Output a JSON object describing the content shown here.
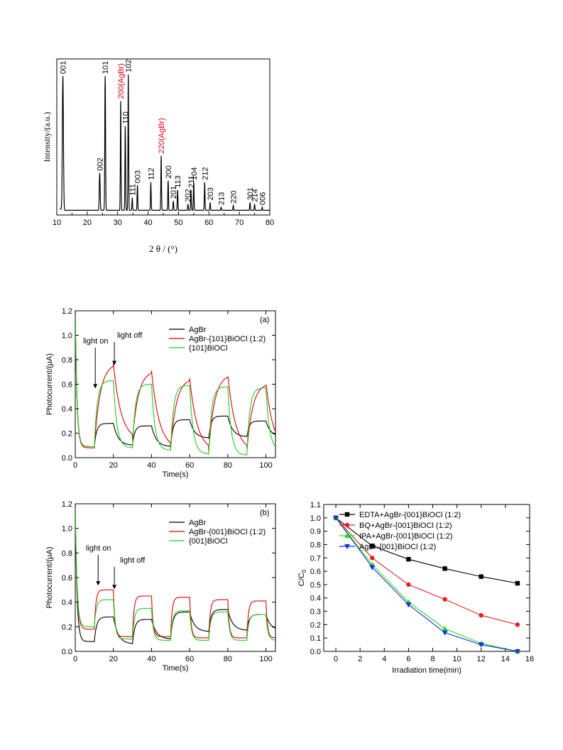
{
  "chart_data": [
    {
      "id": "xrd",
      "type": "line",
      "title": "",
      "xlabel": "2 θ / (°)",
      "ylabel": "Intensity/(a.u.)",
      "xlim": [
        10,
        80
      ],
      "xticks": [
        10,
        20,
        30,
        40,
        50,
        60,
        70,
        80
      ],
      "baseline": 0.03,
      "peaks": [
        {
          "x": 12.0,
          "h": 0.86,
          "w": 0.5,
          "label": "001",
          "color": "#000000"
        },
        {
          "x": 24.1,
          "h": 0.24,
          "w": 0.4,
          "label": "002",
          "color": "#000000"
        },
        {
          "x": 25.9,
          "h": 0.86,
          "w": 0.35,
          "label": "101",
          "color": "#000000"
        },
        {
          "x": 31.0,
          "h": 0.7,
          "w": 0.3,
          "label": "200(AgBr)",
          "color": "#d9001b"
        },
        {
          "x": 32.5,
          "h": 0.54,
          "w": 0.3,
          "label": "110",
          "color": "#000000"
        },
        {
          "x": 33.5,
          "h": 0.87,
          "w": 0.3,
          "label": "102",
          "color": "#000000"
        },
        {
          "x": 34.8,
          "h": 0.08,
          "w": 0.3,
          "label": "111",
          "color": "#000000"
        },
        {
          "x": 36.5,
          "h": 0.16,
          "w": 0.3,
          "label": "003",
          "color": "#000000"
        },
        {
          "x": 40.9,
          "h": 0.18,
          "w": 0.3,
          "label": "112",
          "color": "#000000"
        },
        {
          "x": 44.3,
          "h": 0.35,
          "w": 0.3,
          "label": "220(AgBr)",
          "color": "#d9001b"
        },
        {
          "x": 46.6,
          "h": 0.19,
          "w": 0.3,
          "label": "200",
          "color": "#000000"
        },
        {
          "x": 48.3,
          "h": 0.06,
          "w": 0.3,
          "label": "201",
          "color": "#000000"
        },
        {
          "x": 49.7,
          "h": 0.13,
          "w": 0.3,
          "label": "113",
          "color": "#000000"
        },
        {
          "x": 53.1,
          "h": 0.04,
          "w": 0.3,
          "label": "202",
          "color": "#000000"
        },
        {
          "x": 54.1,
          "h": 0.13,
          "w": 0.3,
          "label": "211",
          "color": "#000000"
        },
        {
          "x": 55.0,
          "h": 0.18,
          "w": 0.3,
          "label": "104",
          "color": "#000000"
        },
        {
          "x": 58.6,
          "h": 0.18,
          "w": 0.3,
          "label": "212",
          "color": "#000000"
        },
        {
          "x": 60.4,
          "h": 0.05,
          "w": 0.3,
          "label": "203",
          "color": "#000000"
        },
        {
          "x": 64.0,
          "h": 0.02,
          "w": 0.3,
          "label": "213",
          "color": "#000000"
        },
        {
          "x": 68.0,
          "h": 0.03,
          "w": 0.3,
          "label": "220",
          "color": "#000000"
        },
        {
          "x": 73.5,
          "h": 0.05,
          "w": 0.3,
          "label": "301",
          "color": "#000000"
        },
        {
          "x": 75.0,
          "h": 0.04,
          "w": 0.3,
          "label": "214",
          "color": "#000000"
        },
        {
          "x": 77.5,
          "h": 0.02,
          "w": 0.3,
          "label": "006",
          "color": "#000000"
        }
      ]
    },
    {
      "id": "photo-a",
      "type": "line",
      "title": "",
      "panel_label": "(a)",
      "xlabel": "Time(s)",
      "ylabel": "Photocurrent/(μA)",
      "xlim": [
        0,
        105
      ],
      "ylim": [
        0,
        1.2
      ],
      "xticks": [
        0,
        20,
        40,
        60,
        80,
        100
      ],
      "yticks": [
        0.0,
        0.2,
        0.4,
        0.6,
        0.8,
        1.0,
        1.2
      ],
      "legend_position": "top-right",
      "annotations": [
        {
          "text": "light on",
          "x": 10.5,
          "y": 0.56
        },
        {
          "text": "light off",
          "x": 20.5,
          "y": 0.75
        }
      ],
      "series": [
        {
          "name": "AgBr",
          "color": "#000000",
          "start": 1.2,
          "first_dark": 0.09,
          "on": [
            0.28,
            0.26,
            0.31,
            0.34,
            0.3
          ],
          "off": [
            0.1,
            0.09,
            0.16,
            0.17,
            0.17
          ],
          "tau_on": 1.2,
          "tau_off": 2.5
        },
        {
          "name": "AgBr-{101}BiOCl (1:2)",
          "color": "#e00000",
          "start": 1.2,
          "first_dark": 0.08,
          "on": [
            0.77,
            0.71,
            0.65,
            0.68,
            0.61
          ],
          "off": [
            0.14,
            0.07,
            0.05,
            0.05,
            0.05
          ],
          "tau_on": 3.0,
          "tau_off": 4.0
        },
        {
          "name": "{101}BiOCl",
          "color": "#22cc22",
          "start": 1.2,
          "first_dark": 0.09,
          "on": [
            0.63,
            0.6,
            0.59,
            0.58,
            0.57
          ],
          "off": [
            0.08,
            0.06,
            0.03,
            0.02,
            0.06
          ],
          "tau_on": 1.5,
          "tau_off": 1.8
        }
      ]
    },
    {
      "id": "photo-b",
      "type": "line",
      "title": "",
      "panel_label": "(b)",
      "xlabel": "Time(s)",
      "ylabel": "Photocurrent/(μA)",
      "xlim": [
        0,
        105
      ],
      "ylim": [
        0,
        1.2
      ],
      "xticks": [
        0,
        20,
        40,
        60,
        80,
        100
      ],
      "yticks": [
        0.0,
        0.2,
        0.4,
        0.6,
        0.8,
        1.0,
        1.2
      ],
      "legend_position": "top-right",
      "annotations": [
        {
          "text": "light on",
          "x": 12,
          "y": 0.53
        },
        {
          "text": "light off",
          "x": 20.5,
          "y": 0.5
        }
      ],
      "series": [
        {
          "name": "AgBr",
          "color": "#000000",
          "start": 1.2,
          "first_dark": 0.08,
          "on": [
            0.28,
            0.26,
            0.32,
            0.34,
            0.3
          ],
          "off": [
            0.06,
            0.1,
            0.16,
            0.17,
            0.17
          ],
          "tau_on": 1.2,
          "tau_off": 2.5
        },
        {
          "name": "AgBr-{001}BiOCl (1:2)",
          "color": "#e00000",
          "start": 1.2,
          "first_dark": 0.18,
          "on": [
            0.5,
            0.45,
            0.44,
            0.42,
            0.41
          ],
          "off": [
            0.12,
            0.12,
            0.11,
            0.11,
            0.11
          ],
          "tau_on": 0.8,
          "tau_off": 0.8
        },
        {
          "name": "{001}BiOCl",
          "color": "#22cc22",
          "start": 1.2,
          "first_dark": 0.2,
          "on": [
            0.42,
            0.35,
            0.33,
            0.32,
            0.3
          ],
          "off": [
            0.1,
            0.09,
            0.09,
            0.09,
            0.09
          ],
          "tau_on": 1.0,
          "tau_off": 1.0
        }
      ]
    },
    {
      "id": "degradation",
      "type": "line",
      "title": "",
      "xlabel": "Irradiation time(min)",
      "ylabel": "C/C0",
      "xlim": [
        -1,
        16
      ],
      "ylim": [
        0,
        1.1
      ],
      "xticks": [
        0,
        2,
        4,
        6,
        8,
        10,
        12,
        14,
        16
      ],
      "yticks": [
        0.0,
        0.1,
        0.2,
        0.3,
        0.4,
        0.5,
        0.6,
        0.7,
        0.8,
        0.9,
        1.0,
        1.1
      ],
      "legend_position": "top-right",
      "x": [
        0,
        3,
        6,
        9,
        12,
        15
      ],
      "series": [
        {
          "name": "EDTA+AgBr-{001}BiOCl (1:2)",
          "color": "#000000",
          "marker": "square",
          "values": [
            1.0,
            0.79,
            0.69,
            0.62,
            0.56,
            0.51
          ]
        },
        {
          "name": "BQ+AgBr-{001}BiOCl (1:2)",
          "color": "#e62020",
          "marker": "circle",
          "values": [
            1.0,
            0.7,
            0.5,
            0.39,
            0.27,
            0.2
          ]
        },
        {
          "name": "IPA+AgBr-{001}BiOCl (1:2)",
          "color": "#22dd22",
          "marker": "triangle-up",
          "values": [
            1.0,
            0.65,
            0.37,
            0.17,
            0.06,
            0.0
          ]
        },
        {
          "name": "AgBr-{001}BiOCl (1:2)",
          "color": "#1030e0",
          "marker": "triangle-down",
          "values": [
            1.0,
            0.63,
            0.35,
            0.14,
            0.05,
            0.0
          ]
        }
      ]
    }
  ]
}
